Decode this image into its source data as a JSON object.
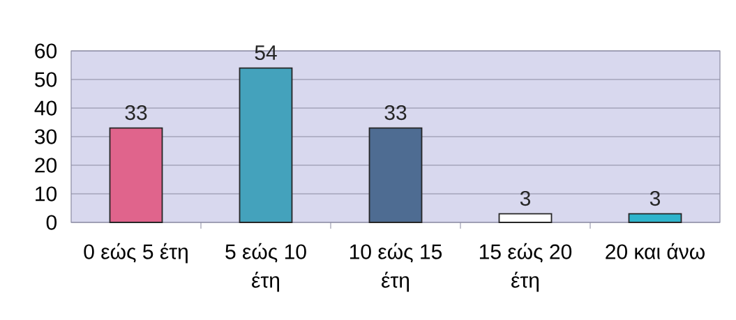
{
  "chart_data": {
    "type": "bar",
    "categories": [
      "0 εώς 5 έτη",
      "5 εώς 10 έτη",
      "10 εώς 15 έτη",
      "15 εώς 20 έτη",
      "20 και άνω"
    ],
    "values": [
      33,
      54,
      33,
      3,
      3
    ],
    "colors": [
      "#e0648c",
      "#44a2bc",
      "#4e6c92",
      "#ffffff",
      "#2fb4cc"
    ],
    "ylim": [
      0,
      60
    ],
    "yticks": [
      0,
      10,
      20,
      30,
      40,
      50,
      60
    ],
    "grid": "y",
    "data_labels": true
  }
}
